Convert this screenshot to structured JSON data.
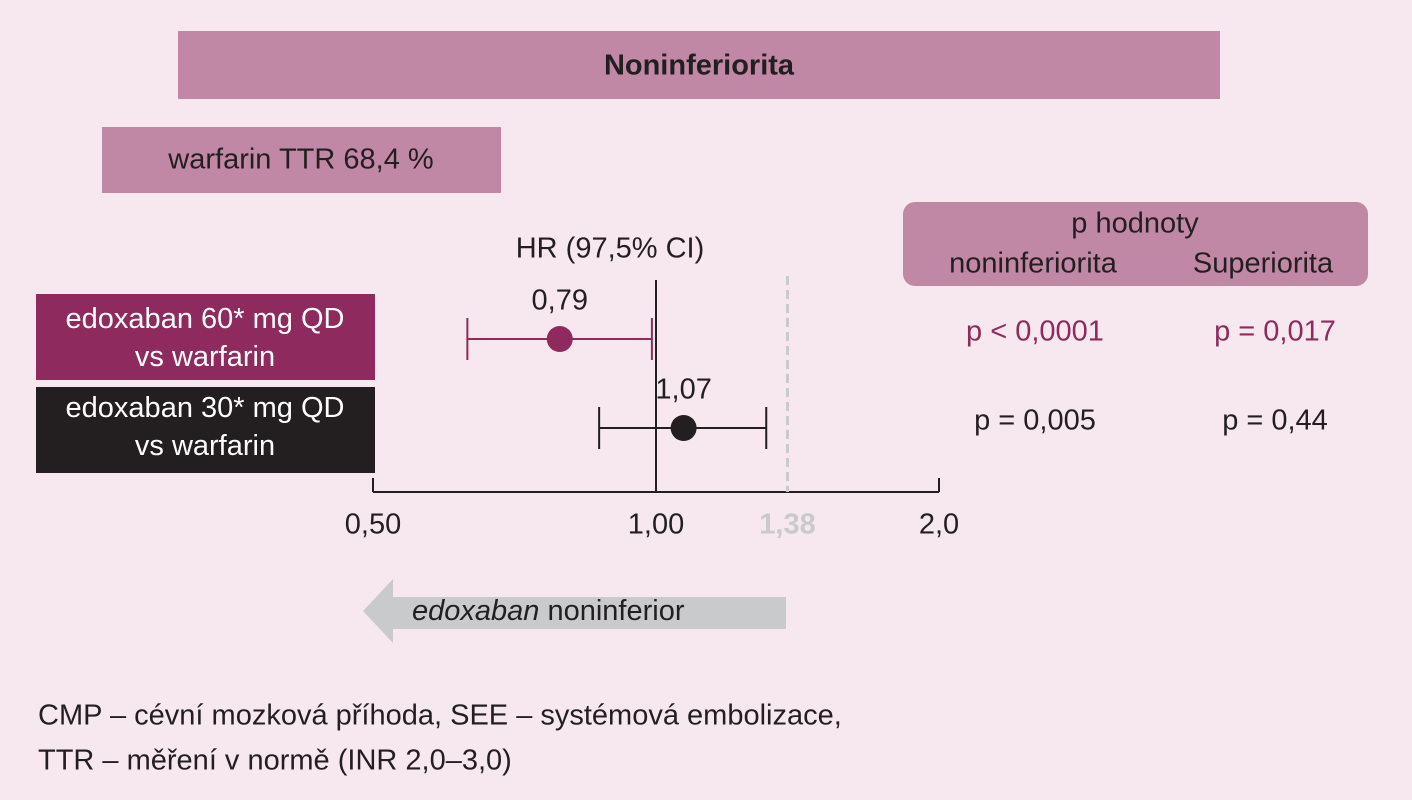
{
  "chart_data": {
    "type": "forest",
    "title": "Noninferiorita",
    "subtitle": "warfarin TTR 68,4 %",
    "axis_title": "HR (97,5% CI)",
    "categories": [
      "edoxaban 60* mg QD\nvs warfarin",
      "edoxaban 30* mg QD\nvs warfarin"
    ],
    "values": [
      0.79,
      1.07
    ],
    "value_labels": [
      "0,79",
      "1,07"
    ],
    "ci_low": [
      0.63,
      0.87
    ],
    "ci_high": [
      0.99,
      1.31
    ],
    "colors": [
      "#8e2a5e",
      "#231f20"
    ],
    "xscale": "log",
    "xlim": [
      0.5,
      2.0
    ],
    "xticks": [
      {
        "value": 0.5,
        "label": "0,50"
      },
      {
        "value": 1.0,
        "label": "1,00"
      },
      {
        "value": 2.0,
        "label": "2,0"
      }
    ],
    "reference": 1.0,
    "margin": {
      "value": 1.38,
      "label": "1,38"
    },
    "arrow_label_italic": "edoxaban",
    "arrow_label": "noninferior",
    "pvalues": {
      "title": "p  hodnoty",
      "columns": [
        "noninferiorita",
        "Superiorita"
      ],
      "rows": [
        [
          "p < 0,0001",
          "p = 0,017"
        ],
        [
          "p = 0,005",
          "p = 0,44"
        ]
      ]
    },
    "footnote": [
      "CMP – cévní mozková příhoda, SEE – systémová embolizace,",
      "TTR – měření v normě (INR 2,0–3,0)"
    ]
  }
}
